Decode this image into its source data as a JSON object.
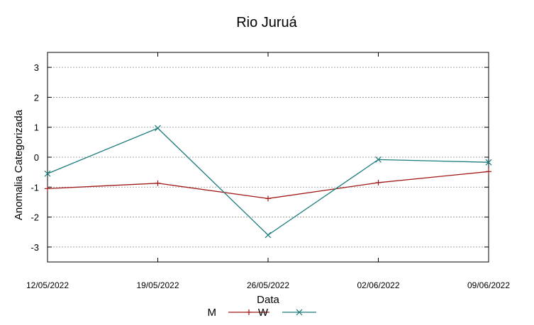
{
  "chart_data": {
    "type": "line",
    "title": "Rio Juruá",
    "xlabel": "Data",
    "ylabel": "Anomalia Categorizada",
    "categories": [
      "12/05/2022",
      "19/05/2022",
      "26/05/2022",
      "02/06/2022",
      "09/06/2022"
    ],
    "yticks": [
      -3,
      -2,
      -1,
      0,
      1,
      2,
      3
    ],
    "ylim": [
      -3.5,
      3.5
    ],
    "grid": true,
    "legend_position": "bottom",
    "series": [
      {
        "name": "M",
        "color": "#a01818",
        "marker": "plus",
        "values": [
          -1.05,
          -0.87,
          -1.38,
          -0.85,
          -0.48
        ]
      },
      {
        "name": "W",
        "color": "#1a7a7a",
        "marker": "x",
        "values": [
          -0.55,
          0.97,
          -2.6,
          -0.08,
          -0.17
        ]
      }
    ]
  }
}
